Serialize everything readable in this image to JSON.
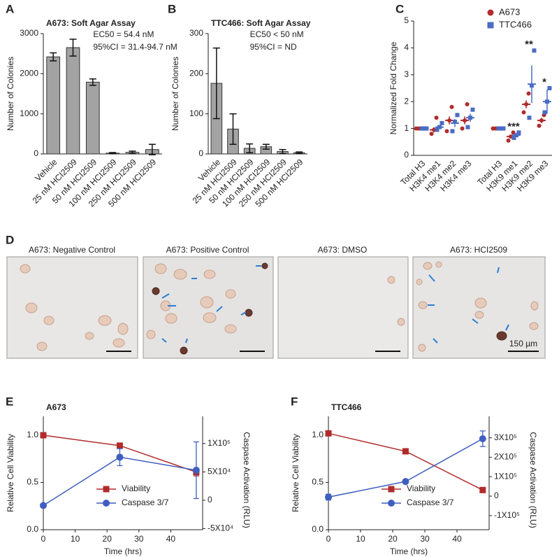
{
  "chart_data": [
    {
      "type": "bar",
      "panel": "A",
      "title": "A673: Soft Agar Assay",
      "annotations": [
        "EC50 = 54.4 nM",
        "95%CI = 31.4-94.7 nM"
      ],
      "y_label": "Number of Colonies",
      "categories": [
        "Vehicle",
        "25 nM HCI2509",
        "50 nM HCI2509",
        "100 nM HCI2509",
        "250 nM HCI2509",
        "500 nM HCI2509"
      ],
      "values": [
        2420,
        2650,
        1790,
        20,
        40,
        110
      ],
      "errors": [
        100,
        210,
        80,
        15,
        30,
        130
      ],
      "color": "#a3a3a3",
      "ylim": [
        0,
        3000
      ],
      "yticks": [
        0,
        1000,
        2000,
        3000
      ],
      "grid": false
    },
    {
      "type": "bar",
      "panel": "B",
      "title": "TTC466: Soft Agar Assay",
      "annotations": [
        "EC50 < 50 nM",
        "95%CI = ND"
      ],
      "y_label": "Number of Colonies",
      "categories": [
        "Vehicle",
        "25 nM HCI2509",
        "50 nM HCI2509",
        "100 nM HCI2509",
        "250 nM HCI2509",
        "500 nM HCI2509"
      ],
      "values": [
        176,
        62,
        14,
        18,
        6,
        3
      ],
      "errors": [
        88,
        38,
        11,
        6,
        5,
        2
      ],
      "color": "#a3a3a3",
      "ylim": [
        0,
        300
      ],
      "yticks": [
        0,
        100,
        200,
        300
      ],
      "grid": false
    },
    {
      "type": "dot",
      "panel": "C",
      "y_label": "Normalized Fold Change",
      "categories": [
        "Total H3",
        "H3K4 me1",
        "H3K4 me2",
        "H3K4 me3",
        null,
        "Total H3",
        "H3K9 me1",
        "H3K9 me2",
        "H3K9 me3"
      ],
      "significance": [
        null,
        null,
        null,
        null,
        null,
        null,
        "***",
        "**",
        "*"
      ],
      "series": [
        {
          "name": "A673",
          "color": "#b22b2b",
          "values": [
            1,
            0.95,
            1.3,
            1.3,
            null,
            1,
            0.7,
            1.9,
            1.3
          ],
          "errors": [
            0,
            0.1,
            0.15,
            0.15,
            null,
            0,
            0.05,
            0.15,
            0.1
          ],
          "points": [
            [
              1,
              1,
              1
            ],
            [
              0.8,
              0.95,
              1.4
            ],
            [
              0.9,
              1.3,
              1.8
            ],
            [
              1.0,
              1.3,
              1.9
            ],
            null,
            [
              1,
              1,
              1
            ],
            [
              0.55,
              0.7,
              0.85
            ],
            [
              1.6,
              1.9,
              2.3
            ],
            [
              1.1,
              1.3,
              1.5
            ]
          ]
        },
        {
          "name": "TTC466",
          "color": "#4a6cc4",
          "values": [
            1,
            1.05,
            1.2,
            1.4,
            null,
            1,
            0.75,
            2.65,
            2.0
          ],
          "errors": [
            0,
            0.05,
            0.15,
            0.15,
            null,
            0,
            0.05,
            0.7,
            0.45
          ],
          "points": [
            [
              1,
              1,
              1
            ],
            [
              0.95,
              1.05,
              1.2
            ],
            [
              0.9,
              1.25,
              1.5
            ],
            [
              1.05,
              1.4,
              1.7
            ],
            null,
            [
              1,
              1,
              1
            ],
            [
              0.65,
              0.75,
              0.85
            ],
            [
              1.4,
              2.6,
              3.9
            ],
            [
              1.6,
              2.0,
              2.5
            ]
          ]
        }
      ],
      "ylim": [
        0,
        5
      ],
      "yticks": [
        0,
        1,
        2,
        3,
        4,
        5
      ],
      "legend": "upper right",
      "grid": false
    },
    {
      "type": "line",
      "panel": "E",
      "title": "A673",
      "x_label": "Time (hrs)",
      "y_label": "Relative Cell Viability",
      "y2_label": "Caspase Activation (RLU)",
      "x": [
        0,
        24,
        48
      ],
      "xlim": [
        0,
        50
      ],
      "xticks": [
        0,
        10,
        20,
        30,
        40
      ],
      "ylim": [
        0,
        1.2
      ],
      "yticks": [
        {
          "value": 0,
          "label": "0.0"
        },
        0.5,
        {
          "value": 1,
          "label": "1.0"
        }
      ],
      "y2lim": [
        -52000,
        148000
      ],
      "y2ticks": [
        {
          "value": -50000,
          "label": "-5X10⁴"
        },
        0,
        {
          "value": 50000,
          "label": "5X10⁴"
        },
        {
          "value": 100000,
          "label": "1X10⁵"
        }
      ],
      "series": [
        {
          "name": "Viability",
          "color": "#b22b2b",
          "marker": "square",
          "values": [
            1.0,
            0.89,
            0.61
          ],
          "errors": [
            0.01,
            0.02,
            0.04
          ]
        },
        {
          "name": "Caspase 3/7",
          "color": "#3f5fbf",
          "marker": "circle",
          "axis": "y2",
          "values": [
            -9300,
            76000,
            53000
          ],
          "errors": [
            0,
            15000,
            50000
          ]
        }
      ],
      "legend": "lower center",
      "grid": false
    },
    {
      "type": "line",
      "panel": "F",
      "title": "TTC466",
      "x_label": "Time (hrs)",
      "y_label": "Relative Cell Viability",
      "y2_label": "Caspase Activation (RLU)",
      "x": [
        0,
        24,
        48
      ],
      "xlim": [
        0,
        50
      ],
      "xticks": [
        0,
        10,
        20,
        30,
        40
      ],
      "ylim": [
        0,
        1.2
      ],
      "yticks": [
        {
          "value": 0,
          "label": "0.0"
        },
        0.5,
        {
          "value": 1,
          "label": "1.0"
        }
      ],
      "y2lim": [
        -172500,
        410000
      ],
      "y2ticks": [
        {
          "value": -100000,
          "label": "-1X10⁵"
        },
        0,
        {
          "value": 100000,
          "label": "1X10⁵"
        },
        {
          "value": 200000,
          "label": "2X10⁵"
        },
        {
          "value": 300000,
          "label": "3X10⁵"
        }
      ],
      "series": [
        {
          "name": "Viability",
          "color": "#b22b2b",
          "marker": "square",
          "values": [
            1.02,
            0.83,
            0.42
          ],
          "errors": [
            0.01,
            0.02,
            0.02
          ]
        },
        {
          "name": "Caspase 3/7",
          "color": "#3f5fbf",
          "marker": "circle",
          "axis": "y2",
          "values": [
            -5000,
            75000,
            295000
          ],
          "errors": [
            15000,
            4000,
            40000
          ]
        }
      ],
      "legend": "lower center",
      "grid": false
    }
  ],
  "microscopy": {
    "panel": "D",
    "titles": [
      "A673: Negative Control",
      "A673: Positive Control",
      "A673: DMSO",
      "A673: HCI2509"
    ],
    "scale_bar": "150 µm"
  }
}
